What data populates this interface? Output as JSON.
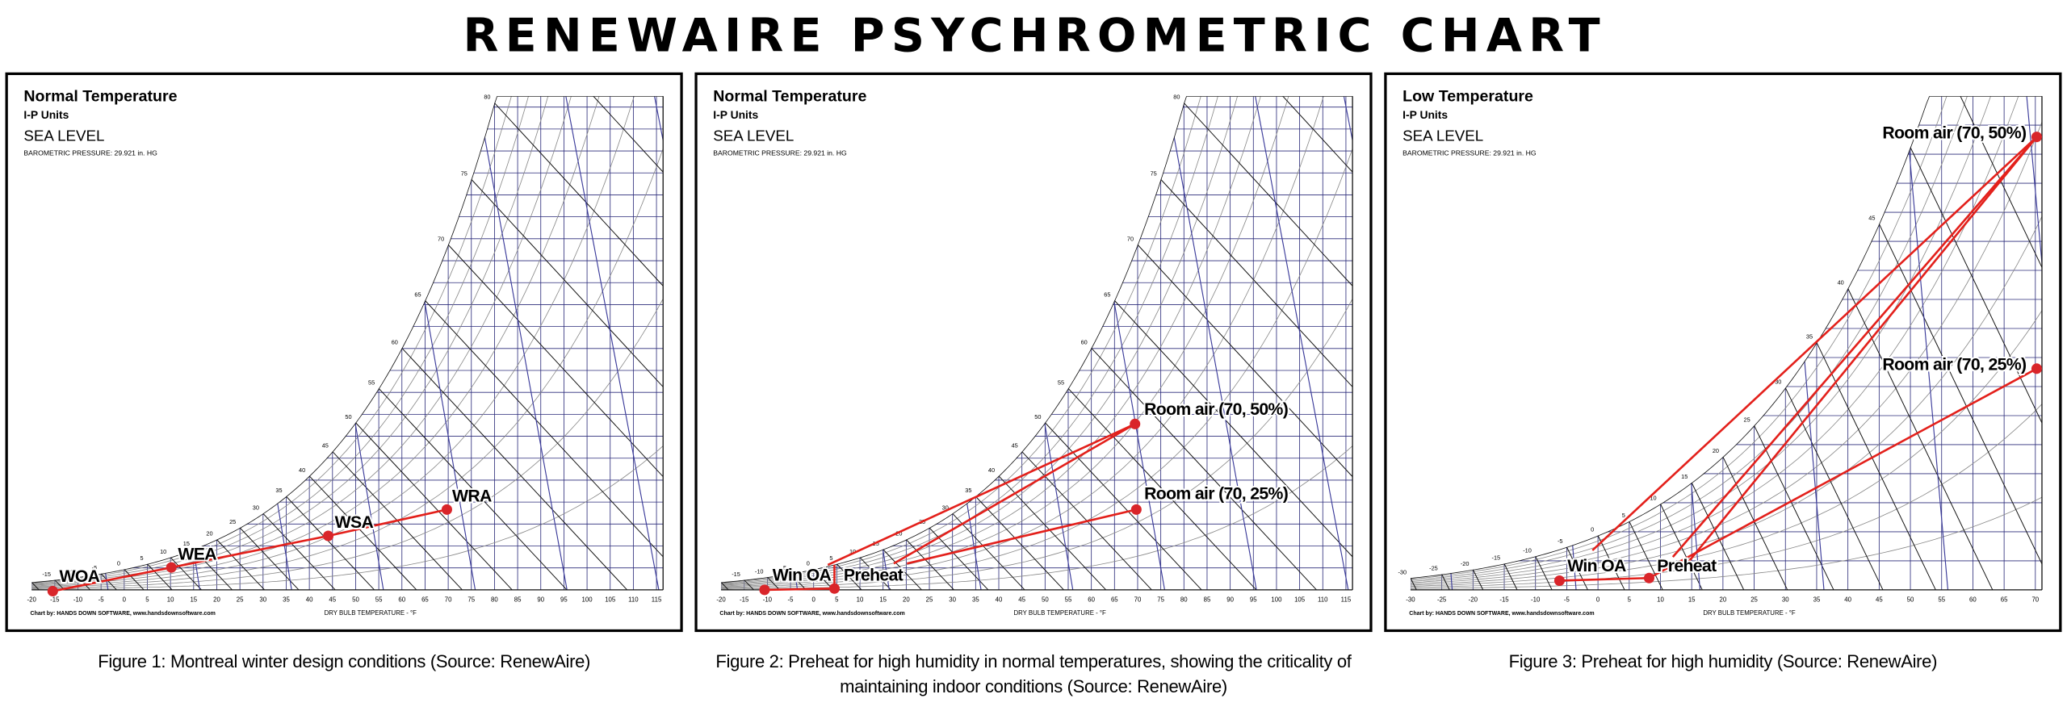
{
  "title": "RENEWAIRE PSYCHROMETRIC CHART",
  "figures": [
    {
      "heading": "Normal Temperature",
      "units": "I-P Units",
      "altitude": "SEA LEVEL",
      "pressure": "BAROMETRIC PRESSURE: 29.921 in. HG",
      "credit": "Chart by: HANDS DOWN SOFTWARE, www.handsdownsoftware.com",
      "x_label": "DRY BULB TEMPERATURE - °F",
      "x_ticks": [
        -20,
        -15,
        -10,
        -5,
        0,
        5,
        10,
        15,
        20,
        25,
        30,
        35,
        40,
        45,
        50,
        55,
        60,
        65,
        70,
        75,
        80,
        85,
        90,
        95,
        100,
        105,
        110,
        115
      ],
      "saturation_labels": [
        -15,
        -10,
        -5,
        0,
        5,
        10,
        15,
        20,
        25,
        30,
        35,
        40,
        45,
        50,
        55,
        60,
        65,
        70,
        75,
        80
      ],
      "points": [
        "WOA",
        "WEA",
        "WSA",
        "WRA"
      ],
      "caption": [
        "Figure 1: Montreal winter design conditions (Source: RenewAire)"
      ]
    },
    {
      "heading": "Normal Temperature",
      "units": "I-P Units",
      "altitude": "SEA LEVEL",
      "pressure": "BAROMETRIC PRESSURE: 29.921 in. HG",
      "credit": "Chart by: HANDS DOWN SOFTWARE, www.handsdownsoftware.com",
      "x_label": "DRY BULB TEMPERATURE - °F",
      "x_ticks": [
        -20,
        -15,
        -10,
        -5,
        0,
        5,
        10,
        15,
        20,
        25,
        30,
        35,
        40,
        45,
        50,
        55,
        60,
        65,
        70,
        75,
        80,
        85,
        90,
        95,
        100,
        105,
        110,
        115
      ],
      "saturation_labels": [
        -15,
        -10,
        -5,
        0,
        5,
        10,
        15,
        20,
        25,
        30,
        35,
        40,
        45,
        50,
        55,
        60,
        65,
        70,
        75,
        80
      ],
      "points": [
        "Win OA",
        "Preheat",
        "Room air (70, 50%)",
        "Room air (70, 25%)"
      ],
      "caption": [
        "Figure 2: Preheat for high humidity in normal temperatures, showing the criticality of",
        "maintaining indoor conditions (Source: RenewAire)"
      ]
    },
    {
      "heading": "Low Temperature",
      "units": "I-P Units",
      "altitude": "SEA LEVEL",
      "pressure": "BAROMETRIC PRESSURE: 29.921 in. HG",
      "credit": "Chart by: HANDS DOWN SOFTWARE, www.handsdownsoftware.com",
      "x_label": "DRY BULB TEMPERATURE - °F",
      "x_ticks": [
        -30,
        -25,
        -20,
        -15,
        -10,
        -5,
        0,
        5,
        10,
        15,
        20,
        25,
        30,
        35,
        40,
        45,
        50,
        55,
        60,
        65,
        70
      ],
      "saturation_labels": [
        -30,
        -25,
        -20,
        -15,
        -10,
        -5,
        0,
        5,
        10,
        15,
        20,
        25,
        30,
        35,
        40,
        45
      ],
      "points": [
        "Win OA",
        "Preheat",
        "Room air (70, 50%)",
        "Room air (70, 25%)"
      ],
      "caption": [
        "Figure 3: Preheat for high humidity (Source: RenewAire)"
      ]
    }
  ]
}
